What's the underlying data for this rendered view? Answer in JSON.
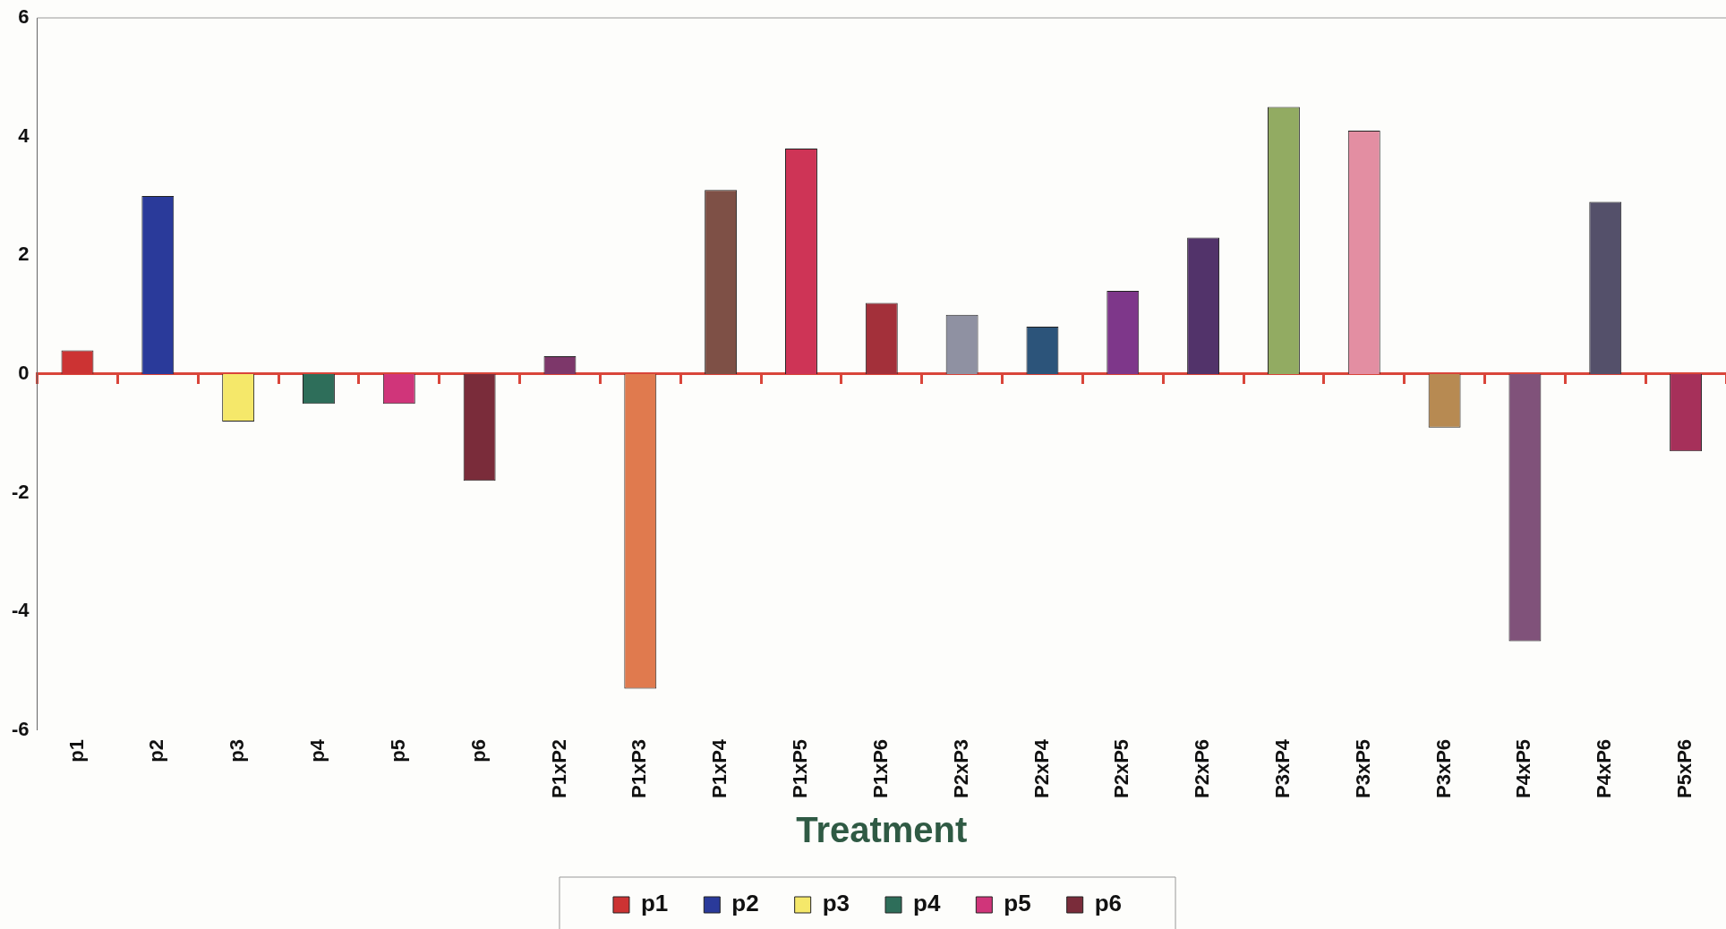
{
  "chart_data": {
    "type": "bar",
    "xlabel": "Treatment",
    "legend": "bottom",
    "grid": false,
    "categories": [
      "p1",
      "p2",
      "p3",
      "p4",
      "p5",
      "p6",
      "P1xP2",
      "P1xP3",
      "P1xP4",
      "P1xP5",
      "P1xP6",
      "P2xP3",
      "P2xP4",
      "P2xP5",
      "P2xP6",
      "P3xP4",
      "P3xP5",
      "P3xP6",
      "P4xP5",
      "P4xP6",
      "P5xP6"
    ],
    "ref_lines": [
      {
        "axis": "y",
        "value": 0,
        "color": "#d9453a"
      }
    ],
    "ylim": [
      -6,
      6
    ],
    "yticks": [
      -6,
      -4,
      -2,
      0,
      2,
      4,
      6
    ],
    "series": [
      {
        "name": "p1",
        "color": "#cc3333",
        "values": [
          0.4,
          null,
          null,
          null,
          null,
          null,
          null,
          null,
          null,
          null,
          null,
          null,
          null,
          null,
          null,
          null,
          null,
          null,
          null,
          null,
          null
        ]
      },
      {
        "name": "p2",
        "color": "#2a3a9a",
        "values": [
          null,
          3.0,
          null,
          null,
          null,
          null,
          null,
          null,
          null,
          null,
          null,
          null,
          null,
          null,
          null,
          null,
          null,
          null,
          null,
          null,
          null
        ]
      },
      {
        "name": "p3",
        "color": "#f5e86a",
        "values": [
          null,
          null,
          -0.8,
          null,
          null,
          null,
          null,
          null,
          null,
          null,
          null,
          null,
          null,
          null,
          null,
          null,
          null,
          null,
          null,
          null,
          null
        ]
      },
      {
        "name": "p4",
        "color": "#2e6e5a",
        "values": [
          null,
          null,
          null,
          -0.5,
          null,
          null,
          null,
          null,
          null,
          null,
          null,
          null,
          null,
          null,
          null,
          null,
          null,
          null,
          null,
          null,
          null
        ]
      },
      {
        "name": "p5",
        "color": "#d0357a",
        "values": [
          null,
          null,
          null,
          null,
          -0.5,
          null,
          null,
          null,
          null,
          null,
          null,
          null,
          null,
          null,
          null,
          null,
          null,
          null,
          null,
          null,
          null
        ]
      },
      {
        "name": "p6",
        "color": "#7a2c3a",
        "values": [
          null,
          null,
          null,
          null,
          null,
          -1.8,
          null,
          null,
          null,
          null,
          null,
          null,
          null,
          null,
          null,
          null,
          null,
          null,
          null,
          null,
          null
        ]
      },
      {
        "colors": [
          "#000000",
          "#000000",
          "#000000",
          "#000000",
          "#000000",
          "#000000",
          "#7d376a",
          "#e07a4e",
          "#7e5046",
          "#ce3456",
          "#a3303a",
          "#8f91a2",
          "#2c547a",
          "#7e378a",
          "#52336a",
          "#92ab62",
          "#e38ea2",
          "#b78a52",
          "#80527a",
          "#54506a",
          "#a6305a"
        ],
        "values": [
          null,
          null,
          null,
          null,
          null,
          null,
          0.3,
          -5.3,
          3.1,
          3.8,
          1.2,
          1.0,
          0.8,
          1.4,
          2.3,
          4.5,
          4.1,
          -0.9,
          -4.5,
          2.9,
          -1.3
        ]
      }
    ]
  }
}
